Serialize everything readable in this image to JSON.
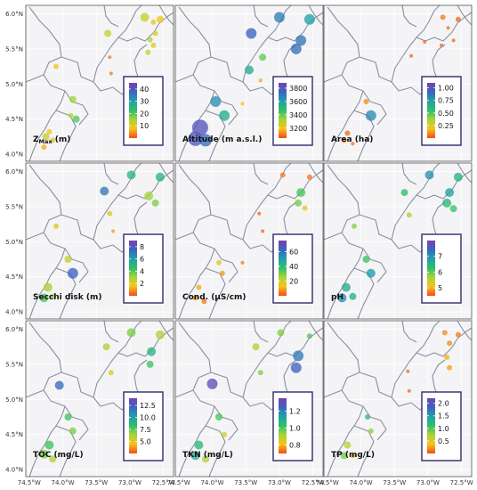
{
  "figure": {
    "gradient_stops": [
      "#f44a1e",
      "#f6c419",
      "#a4d43a",
      "#2fbf6a",
      "#21a0a8",
      "#3b64c2",
      "#7b3fb0"
    ],
    "boundary_color": "#8a8fa0",
    "y_axis_labels": [
      "6.0°N",
      "5.5°N",
      "5.0°N",
      "4.5°N",
      "4.0°N"
    ],
    "x_axis_labels": [
      "74.5°W",
      "74.0°W",
      "73.5°W",
      "73.0°W",
      "72.5°W"
    ],
    "panels": [
      {
        "id": "zmax",
        "label_main": "Z",
        "label_sub": "Max",
        "label_rest": " (m)",
        "legend_ticks": [
          "40",
          "30",
          "20",
          "10"
        ],
        "legend_range": [
          0,
          45
        ],
        "points": [
          {
            "lon": -72.78,
            "lat": 5.95,
            "v": 12,
            "r": 5
          },
          {
            "lon": -72.55,
            "lat": 5.92,
            "v": 8,
            "r": 4
          },
          {
            "lon": -72.65,
            "lat": 5.88,
            "v": 10,
            "r": 3
          },
          {
            "lon": -73.33,
            "lat": 5.72,
            "v": 12,
            "r": 4
          },
          {
            "lon": -72.62,
            "lat": 5.72,
            "v": 9,
            "r": 3
          },
          {
            "lon": -72.7,
            "lat": 5.63,
            "v": 14,
            "r": 3
          },
          {
            "lon": -72.65,
            "lat": 5.55,
            "v": 10,
            "r": 3
          },
          {
            "lon": -72.73,
            "lat": 5.45,
            "v": 12,
            "r": 3
          },
          {
            "lon": -73.3,
            "lat": 5.38,
            "v": 3,
            "r": 2
          },
          {
            "lon": -73.28,
            "lat": 5.15,
            "v": 3,
            "r": 2
          },
          {
            "lon": -74.1,
            "lat": 5.25,
            "v": 8,
            "r": 3
          },
          {
            "lon": -73.85,
            "lat": 4.78,
            "v": 15,
            "r": 4
          },
          {
            "lon": -73.88,
            "lat": 4.55,
            "v": 14,
            "r": 3
          },
          {
            "lon": -73.8,
            "lat": 4.5,
            "v": 20,
            "r": 4
          },
          {
            "lon": -74.2,
            "lat": 4.32,
            "v": 8,
            "r": 3
          },
          {
            "lon": -74.25,
            "lat": 4.25,
            "v": 12,
            "r": 4
          },
          {
            "lon": -74.15,
            "lat": 4.2,
            "v": 10,
            "r": 3
          },
          {
            "lon": -74.28,
            "lat": 4.1,
            "v": 6,
            "r": 3
          }
        ]
      },
      {
        "id": "altitude",
        "label_main": "Altitude (m a.s.l.)",
        "label_sub": "",
        "label_rest": "",
        "legend_ticks": [
          "3800",
          "3600",
          "3400",
          "3200"
        ],
        "legend_range": [
          3050,
          3880
        ],
        "points": [
          {
            "lon": -73.0,
            "lat": 5.95,
            "v": 3680,
            "r": 6
          },
          {
            "lon": -72.55,
            "lat": 5.92,
            "v": 3600,
            "r": 6
          },
          {
            "lon": -72.68,
            "lat": 5.62,
            "v": 3700,
            "r": 6
          },
          {
            "lon": -73.42,
            "lat": 5.72,
            "v": 3750,
            "r": 6
          },
          {
            "lon": -72.75,
            "lat": 5.5,
            "v": 3720,
            "r": 6
          },
          {
            "lon": -73.45,
            "lat": 5.2,
            "v": 3550,
            "r": 5
          },
          {
            "lon": -73.25,
            "lat": 5.38,
            "v": 3400,
            "r": 4
          },
          {
            "lon": -73.28,
            "lat": 5.05,
            "v": 3150,
            "r": 2
          },
          {
            "lon": -73.95,
            "lat": 4.75,
            "v": 3650,
            "r": 6
          },
          {
            "lon": -73.82,
            "lat": 4.55,
            "v": 3550,
            "r": 6
          },
          {
            "lon": -74.18,
            "lat": 4.38,
            "v": 3800,
            "r": 9
          },
          {
            "lon": -74.25,
            "lat": 4.22,
            "v": 3780,
            "r": 8
          },
          {
            "lon": -74.1,
            "lat": 4.2,
            "v": 3720,
            "r": 7
          },
          {
            "lon": -73.55,
            "lat": 4.72,
            "v": 3200,
            "r": 2
          }
        ]
      },
      {
        "id": "area",
        "label_main": "Area (ha)",
        "label_sub": "",
        "label_rest": "",
        "legend_ticks": [
          "1.00",
          "0.75",
          "0.50",
          "0.25"
        ],
        "legend_range": [
          0,
          1.1
        ],
        "points": [
          {
            "lon": -72.78,
            "lat": 5.95,
            "v": 0.08,
            "r": 3
          },
          {
            "lon": -72.55,
            "lat": 5.92,
            "v": 0.05,
            "r": 3
          },
          {
            "lon": -72.7,
            "lat": 5.8,
            "v": 0.05,
            "r": 2
          },
          {
            "lon": -72.62,
            "lat": 5.62,
            "v": 0.05,
            "r": 2
          },
          {
            "lon": -72.8,
            "lat": 5.55,
            "v": 0.05,
            "r": 2
          },
          {
            "lon": -73.05,
            "lat": 5.6,
            "v": 0.05,
            "r": 2
          },
          {
            "lon": -73.25,
            "lat": 5.4,
            "v": 0.05,
            "r": 2
          },
          {
            "lon": -73.92,
            "lat": 4.75,
            "v": 0.1,
            "r": 3
          },
          {
            "lon": -73.85,
            "lat": 4.55,
            "v": 0.8,
            "r": 6
          },
          {
            "lon": -74.2,
            "lat": 4.3,
            "v": 0.05,
            "r": 3
          },
          {
            "lon": -74.25,
            "lat": 4.2,
            "v": 0.07,
            "r": 3
          },
          {
            "lon": -74.12,
            "lat": 4.15,
            "v": 0.05,
            "r": 2
          }
        ]
      },
      {
        "id": "secchi",
        "label_main": "Secchi disk (m)",
        "label_sub": "",
        "label_rest": "",
        "legend_ticks": [
          "8",
          "6",
          "4",
          "2"
        ],
        "legend_range": [
          0,
          9
        ],
        "points": [
          {
            "lon": -72.98,
            "lat": 5.95,
            "v": 5,
            "r": 5
          },
          {
            "lon": -72.55,
            "lat": 5.92,
            "v": 5,
            "r": 5
          },
          {
            "lon": -73.38,
            "lat": 5.72,
            "v": 7,
            "r": 5
          },
          {
            "lon": -72.72,
            "lat": 5.65,
            "v": 3,
            "r": 5
          },
          {
            "lon": -72.62,
            "lat": 5.55,
            "v": 3.5,
            "r": 4
          },
          {
            "lon": -73.3,
            "lat": 5.4,
            "v": 2,
            "r": 3
          },
          {
            "lon": -73.25,
            "lat": 5.15,
            "v": 1,
            "r": 2
          },
          {
            "lon": -74.1,
            "lat": 5.22,
            "v": 2,
            "r": 3
          },
          {
            "lon": -73.92,
            "lat": 4.75,
            "v": 2.5,
            "r": 4
          },
          {
            "lon": -73.85,
            "lat": 4.55,
            "v": 7.5,
            "r": 6
          },
          {
            "lon": -74.22,
            "lat": 4.35,
            "v": 3,
            "r": 5
          },
          {
            "lon": -74.28,
            "lat": 4.2,
            "v": 4,
            "r": 5
          },
          {
            "lon": -74.15,
            "lat": 4.22,
            "v": 3,
            "r": 3
          }
        ]
      },
      {
        "id": "cond",
        "label_main": "Cond. (µS/cm)",
        "label_sub": "",
        "label_rest": "",
        "legend_ticks": [
          "60",
          "40",
          "20"
        ],
        "legend_range": [
          0,
          75
        ],
        "points": [
          {
            "lon": -72.95,
            "lat": 5.95,
            "v": 5,
            "r": 3
          },
          {
            "lon": -72.55,
            "lat": 5.92,
            "v": 5,
            "r": 3
          },
          {
            "lon": -72.68,
            "lat": 5.7,
            "v": 35,
            "r": 5
          },
          {
            "lon": -72.72,
            "lat": 5.55,
            "v": 30,
            "r": 4
          },
          {
            "lon": -72.62,
            "lat": 5.48,
            "v": 15,
            "r": 3
          },
          {
            "lon": -73.3,
            "lat": 5.4,
            "v": 3,
            "r": 2
          },
          {
            "lon": -73.25,
            "lat": 5.15,
            "v": 3,
            "r": 2
          },
          {
            "lon": -73.9,
            "lat": 4.7,
            "v": 15,
            "r": 3
          },
          {
            "lon": -73.85,
            "lat": 4.55,
            "v": 8,
            "r": 3
          },
          {
            "lon": -74.2,
            "lat": 4.35,
            "v": 10,
            "r": 3
          },
          {
            "lon": -74.25,
            "lat": 4.2,
            "v": 8,
            "r": 3
          },
          {
            "lon": -74.12,
            "lat": 4.15,
            "v": 5,
            "r": 3
          },
          {
            "lon": -73.55,
            "lat": 4.7,
            "v": 5,
            "r": 2
          }
        ]
      },
      {
        "id": "ph",
        "label_main": "pH",
        "label_sub": "",
        "label_rest": "",
        "legend_ticks": [
          "7",
          "6",
          "5"
        ],
        "legend_range": [
          4.5,
          8
        ],
        "points": [
          {
            "lon": -72.98,
            "lat": 5.95,
            "v": 7,
            "r": 5
          },
          {
            "lon": -72.55,
            "lat": 5.92,
            "v": 6.5,
            "r": 5
          },
          {
            "lon": -72.68,
            "lat": 5.7,
            "v": 6.8,
            "r": 5
          },
          {
            "lon": -72.72,
            "lat": 5.55,
            "v": 6.4,
            "r": 5
          },
          {
            "lon": -72.62,
            "lat": 5.47,
            "v": 6.2,
            "r": 4
          },
          {
            "lon": -73.35,
            "lat": 5.7,
            "v": 6.3,
            "r": 4
          },
          {
            "lon": -73.28,
            "lat": 5.38,
            "v": 5.6,
            "r": 3
          },
          {
            "lon": -74.1,
            "lat": 5.22,
            "v": 5.8,
            "r": 3
          },
          {
            "lon": -73.92,
            "lat": 4.75,
            "v": 6.2,
            "r": 4
          },
          {
            "lon": -73.85,
            "lat": 4.55,
            "v": 6.9,
            "r": 5
          },
          {
            "lon": -74.22,
            "lat": 4.35,
            "v": 6.6,
            "r": 5
          },
          {
            "lon": -74.28,
            "lat": 4.2,
            "v": 7,
            "r": 5
          },
          {
            "lon": -74.12,
            "lat": 4.22,
            "v": 6.5,
            "r": 4
          }
        ]
      },
      {
        "id": "toc",
        "label_main": "TOC (mg/L)",
        "label_sub": "",
        "label_rest": "",
        "legend_ticks": [
          "12.5",
          "10.0",
          "7.5",
          "5.0"
        ],
        "legend_range": [
          2.5,
          14
        ],
        "points": [
          {
            "lon": -72.98,
            "lat": 5.95,
            "v": 7,
            "r": 5
          },
          {
            "lon": -72.55,
            "lat": 5.92,
            "v": 6,
            "r": 5
          },
          {
            "lon": -72.68,
            "lat": 5.68,
            "v": 9,
            "r": 5
          },
          {
            "lon": -72.7,
            "lat": 5.5,
            "v": 8,
            "r": 4
          },
          {
            "lon": -73.35,
            "lat": 5.75,
            "v": 6,
            "r": 4
          },
          {
            "lon": -73.28,
            "lat": 5.38,
            "v": 5,
            "r": 3
          },
          {
            "lon": -74.05,
            "lat": 5.2,
            "v": 12,
            "r": 5
          },
          {
            "lon": -73.92,
            "lat": 4.75,
            "v": 8,
            "r": 4
          },
          {
            "lon": -73.85,
            "lat": 4.55,
            "v": 7,
            "r": 4
          },
          {
            "lon": -74.2,
            "lat": 4.35,
            "v": 8,
            "r": 5
          },
          {
            "lon": -74.28,
            "lat": 4.22,
            "v": 7,
            "r": 5
          },
          {
            "lon": -74.15,
            "lat": 4.15,
            "v": 6,
            "r": 4
          }
        ]
      },
      {
        "id": "tkn",
        "label_main": "TKN (mg/L)",
        "label_sub": "",
        "label_rest": "",
        "legend_ticks": [
          "1.2",
          "1.0",
          "0.8"
        ],
        "legend_range": [
          0.7,
          1.35
        ],
        "points": [
          {
            "lon": -72.98,
            "lat": 5.95,
            "v": 0.95,
            "r": 4
          },
          {
            "lon": -72.55,
            "lat": 5.9,
            "v": 1.0,
            "r": 3
          },
          {
            "lon": -72.72,
            "lat": 5.62,
            "v": 1.2,
            "r": 6
          },
          {
            "lon": -72.75,
            "lat": 5.45,
            "v": 1.25,
            "r": 6
          },
          {
            "lon": -73.35,
            "lat": 5.75,
            "v": 0.9,
            "r": 4
          },
          {
            "lon": -73.28,
            "lat": 5.38,
            "v": 0.95,
            "r": 3
          },
          {
            "lon": -74.0,
            "lat": 5.22,
            "v": 1.3,
            "r": 6
          },
          {
            "lon": -73.9,
            "lat": 4.75,
            "v": 1.0,
            "r": 4
          },
          {
            "lon": -73.82,
            "lat": 4.5,
            "v": 0.85,
            "r": 3
          },
          {
            "lon": -74.2,
            "lat": 4.35,
            "v": 1.05,
            "r": 5
          },
          {
            "lon": -74.25,
            "lat": 4.2,
            "v": 1.1,
            "r": 5
          },
          {
            "lon": -74.1,
            "lat": 4.15,
            "v": 0.9,
            "r": 4
          }
        ]
      },
      {
        "id": "tp",
        "label_main": "TP (mg/L)",
        "label_sub": "",
        "label_rest": "",
        "legend_ticks": [
          "2.0",
          "1.5",
          "1.0",
          "0.5"
        ],
        "legend_range": [
          0,
          2.2
        ],
        "points": [
          {
            "lon": -72.75,
            "lat": 5.95,
            "v": 0.2,
            "r": 3
          },
          {
            "lon": -72.55,
            "lat": 5.92,
            "v": 0.15,
            "r": 3
          },
          {
            "lon": -72.68,
            "lat": 5.8,
            "v": 0.2,
            "r": 3
          },
          {
            "lon": -72.72,
            "lat": 5.6,
            "v": 0.3,
            "r": 3
          },
          {
            "lon": -72.68,
            "lat": 5.45,
            "v": 0.25,
            "r": 3
          },
          {
            "lon": -73.3,
            "lat": 5.4,
            "v": 0.1,
            "r": 2
          },
          {
            "lon": -73.28,
            "lat": 5.12,
            "v": 0.1,
            "r": 2
          },
          {
            "lon": -73.9,
            "lat": 4.75,
            "v": 1.2,
            "r": 3
          },
          {
            "lon": -73.85,
            "lat": 4.55,
            "v": 0.8,
            "r": 3
          },
          {
            "lon": -74.2,
            "lat": 4.35,
            "v": 0.6,
            "r": 4
          },
          {
            "lon": -74.25,
            "lat": 4.2,
            "v": 0.9,
            "r": 4
          },
          {
            "lon": -74.12,
            "lat": 4.2,
            "v": 0.4,
            "r": 3
          }
        ]
      }
    ]
  }
}
